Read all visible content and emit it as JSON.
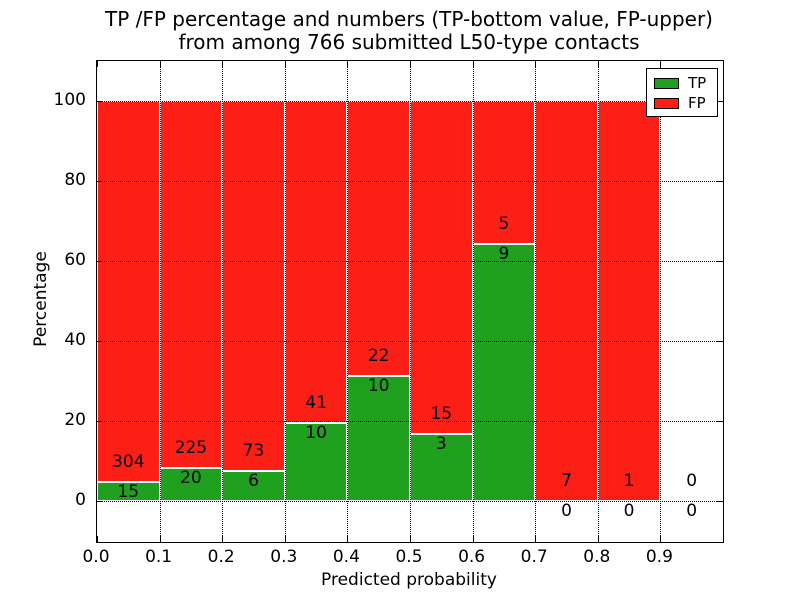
{
  "chart_data": {
    "type": "bar",
    "stacked": true,
    "title_line1": "TP /FP percentage and numbers (TP-bottom value, FP-upper)",
    "title_line2": "from among 766 submitted L50-type contacts",
    "xlabel": "Predicted probability",
    "ylabel": "Percentage",
    "xlim": [
      0.0,
      1.0
    ],
    "ylim": [
      -10,
      110
    ],
    "xticks": [
      "0.0",
      "0.1",
      "0.2",
      "0.3",
      "0.4",
      "0.5",
      "0.6",
      "0.7",
      "0.8",
      "0.9"
    ],
    "yticks": [
      "0",
      "20",
      "40",
      "60",
      "80",
      "100"
    ],
    "grid": "dotted",
    "bin_width": 0.1,
    "total_contacts": 766,
    "categories": [
      "0.0-0.1",
      "0.1-0.2",
      "0.2-0.3",
      "0.3-0.4",
      "0.4-0.5",
      "0.5-0.6",
      "0.6-0.7",
      "0.7-0.8",
      "0.8-0.9",
      "0.9-1.0"
    ],
    "series": [
      {
        "name": "TP",
        "counts": [
          15,
          20,
          6,
          10,
          10,
          3,
          9,
          0,
          0,
          0
        ]
      },
      {
        "name": "FP",
        "counts": [
          304,
          225,
          73,
          41,
          22,
          15,
          5,
          7,
          1,
          0
        ]
      }
    ],
    "tp_percent": [
      4.7,
      8.16,
      7.59,
      19.61,
      31.25,
      16.67,
      64.29,
      0,
      0,
      null
    ],
    "legend": {
      "position": "upper right",
      "entries": [
        {
          "label": "TP",
          "color": "#1fa11f"
        },
        {
          "label": "FP",
          "color": "#fb1f16"
        }
      ]
    }
  },
  "colors": {
    "tp_green": "#1fa11f",
    "fp_red": "#fb1f16",
    "text": "#000000",
    "grid": "#000000",
    "background": "#ffffff"
  }
}
